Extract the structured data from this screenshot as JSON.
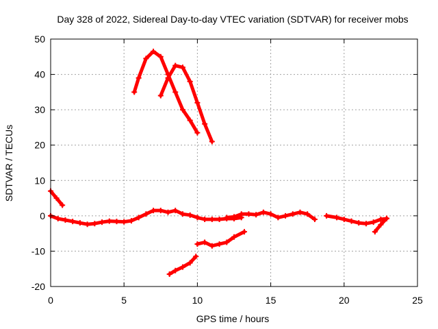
{
  "chart_data": {
    "type": "line",
    "title": "Day 328 of 2022, Sidereal Day-to-day VTEC variation (SDTVAR) for receiver mobs",
    "xlabel": "GPS time / hours",
    "ylabel": "SDTVAR / TECUs",
    "xlim": [
      0,
      25
    ],
    "ylim": [
      -20,
      50
    ],
    "xticks": [
      0,
      5,
      10,
      15,
      20,
      25
    ],
    "yticks": [
      -20,
      -10,
      0,
      10,
      20,
      30,
      40,
      50
    ],
    "grid": true,
    "legend": "none",
    "series_color": "#ff0000",
    "series": [
      {
        "name": "track-1",
        "x": [
          0,
          0.4,
          0.8
        ],
        "y": [
          7,
          5,
          3
        ]
      },
      {
        "name": "track-2",
        "x": [
          0,
          0.5,
          1,
          1.5,
          2,
          2.5,
          3,
          3.5,
          4,
          4.5,
          5,
          5.5,
          6,
          6.5,
          7,
          7.5,
          8,
          8.5,
          9,
          9.5,
          10,
          10.5,
          11,
          11.5,
          12,
          12.5,
          13
        ],
        "y": [
          0,
          -0.8,
          -1.2,
          -1.6,
          -2,
          -2.4,
          -2.2,
          -1.8,
          -1.5,
          -1.6,
          -1.7,
          -1.4,
          -0.5,
          0.5,
          1.5,
          1.5,
          1,
          1.5,
          0.5,
          0.2,
          -0.5,
          -1,
          -1,
          -1,
          -0.8,
          -0.8,
          -0.5
        ]
      },
      {
        "name": "track-3",
        "x": [
          5.7,
          6,
          6.5,
          7,
          7.5,
          8,
          8.5,
          9,
          9.5,
          10
        ],
        "y": [
          35,
          39,
          44.5,
          46.5,
          45,
          40,
          35,
          30,
          27,
          23.5
        ]
      },
      {
        "name": "track-4",
        "x": [
          7.5,
          8,
          8.5,
          9,
          9.5,
          10,
          10.5,
          11
        ],
        "y": [
          34,
          39,
          42.5,
          42,
          38,
          32,
          26,
          21
        ]
      },
      {
        "name": "track-5",
        "x": [
          12,
          12.5,
          13,
          13.5,
          14,
          14.5,
          15,
          15.5,
          16,
          16.5,
          17,
          17.5,
          18
        ],
        "y": [
          -0.5,
          -0.3,
          0.5,
          0.5,
          0.3,
          1,
          0.5,
          -0.5,
          0,
          0.5,
          1,
          0.5,
          -1
        ]
      },
      {
        "name": "track-6",
        "x": [
          10,
          10.5,
          11,
          11.5,
          12,
          12.5,
          13.2
        ],
        "y": [
          -8,
          -7.5,
          -8.5,
          -8,
          -7.5,
          -6,
          -4.5
        ]
      },
      {
        "name": "track-7",
        "x": [
          8.1,
          8.5,
          9,
          9.5,
          9.9
        ],
        "y": [
          -16.5,
          -15.5,
          -14.5,
          -13.3,
          -11.5
        ]
      },
      {
        "name": "track-8",
        "x": [
          18.8,
          19.5,
          20,
          20.5,
          21,
          21.5,
          22,
          22.5,
          22.9
        ],
        "y": [
          0,
          -0.5,
          -1,
          -1.5,
          -2,
          -2.2,
          -1.8,
          -1,
          -0.8
        ]
      },
      {
        "name": "track-9",
        "x": [
          22.1,
          22.5,
          22.9
        ],
        "y": [
          -4.5,
          -2.5,
          -0.7
        ]
      }
    ]
  }
}
